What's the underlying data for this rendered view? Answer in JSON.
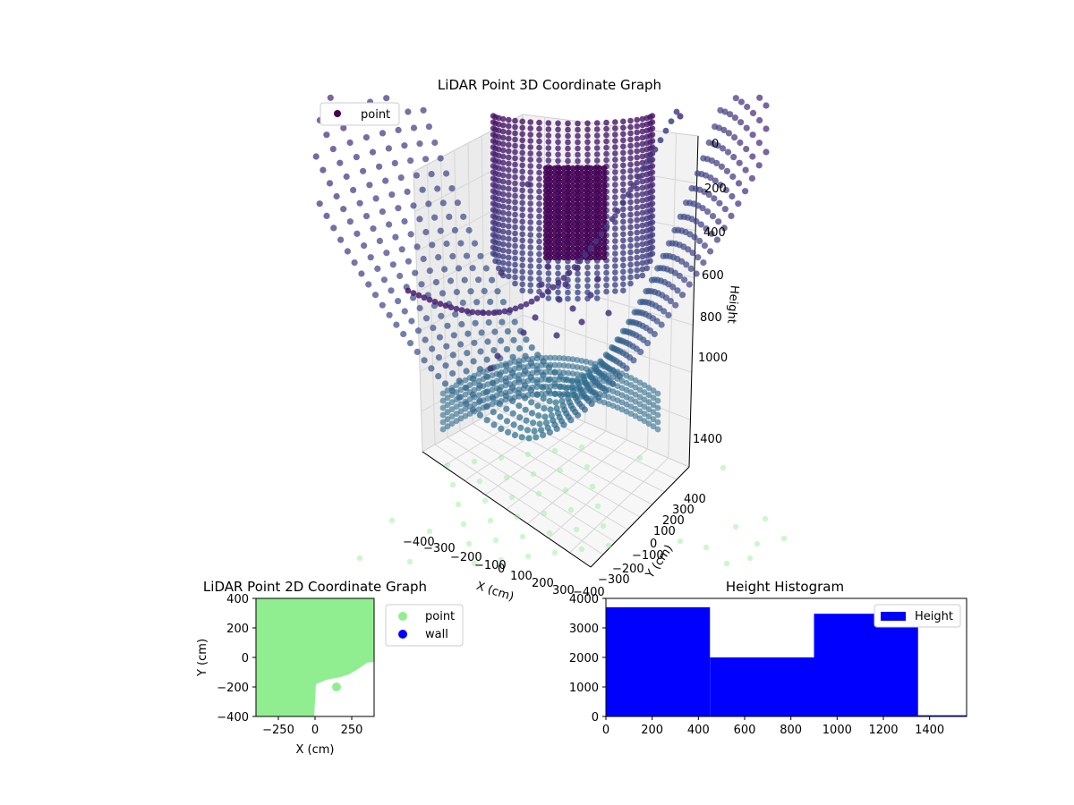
{
  "chart_data": [
    {
      "type": "scatter",
      "title": "LiDAR Point 3D Coordinate Graph",
      "xlabel": "X (cm)",
      "ylabel": "Y (cm)",
      "zlabel": "Height",
      "x_ticks": [
        "−400",
        "−300",
        "−200",
        "−100",
        "0",
        "100",
        "200",
        "300"
      ],
      "y_ticks": [
        "−400",
        "−300",
        "−200",
        "−100",
        "0",
        "100",
        "200",
        "300",
        "400"
      ],
      "z_ticks": [
        "0",
        "200",
        "400",
        "600",
        "800",
        "1000",
        "1400"
      ],
      "legend": [
        "point"
      ],
      "legend_position": "upper-left",
      "colors": {
        "point": "#440154",
        "shadow": "#90ee90"
      }
    },
    {
      "type": "scatter",
      "title": "LiDAR Point 2D Coordinate Graph",
      "xlabel": "X (cm)",
      "ylabel": "Y (cm)",
      "xlim": [
        -400,
        400
      ],
      "ylim": [
        -400,
        400
      ],
      "x_ticks": [
        "−250",
        "0",
        "250"
      ],
      "y_ticks": [
        "400",
        "200",
        "0",
        "−200",
        "−400"
      ],
      "series": [
        {
          "name": "point",
          "color": "#90ee90"
        },
        {
          "name": "wall",
          "color": "#0000ff"
        }
      ],
      "legend_position": "outside-right",
      "colors": {
        "point": "#90ee90",
        "wall": "#0000ff"
      }
    },
    {
      "type": "bar",
      "title": "Height Histogram",
      "xlim": [
        0,
        1560
      ],
      "ylim": [
        0,
        4000
      ],
      "bins": [
        {
          "x0": 0,
          "x1": 450,
          "count": 3700
        },
        {
          "x0": 450,
          "x1": 900,
          "count": 2000
        },
        {
          "x0": 900,
          "x1": 1350,
          "count": 3480
        },
        {
          "x0": 1350,
          "x1": 1560,
          "count": 40
        }
      ],
      "x_ticks": [
        "0",
        "200",
        "400",
        "600",
        "800",
        "1000",
        "1200",
        "1400"
      ],
      "y_ticks": [
        "0",
        "1000",
        "2000",
        "3000",
        "4000"
      ],
      "legend": [
        "Height"
      ],
      "legend_position": "top-right",
      "colors": {
        "bar": "#0000ff"
      }
    }
  ]
}
